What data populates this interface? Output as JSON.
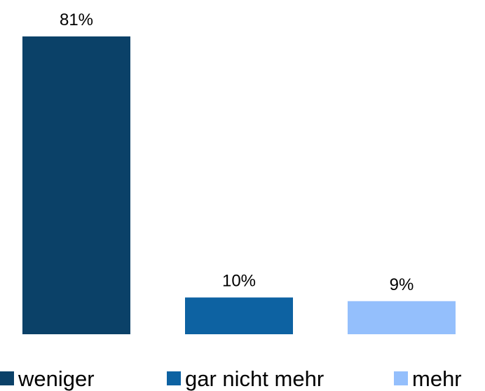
{
  "chart_data": {
    "type": "bar",
    "categories": [
      "weniger",
      "gar nicht mehr",
      "mehr"
    ],
    "values": [
      81,
      10,
      9
    ],
    "value_labels": [
      "81%",
      "10%",
      "9%"
    ],
    "colors": [
      "#0b4168",
      "#0d62a2",
      "#94bffc"
    ],
    "legend": "bottom"
  }
}
